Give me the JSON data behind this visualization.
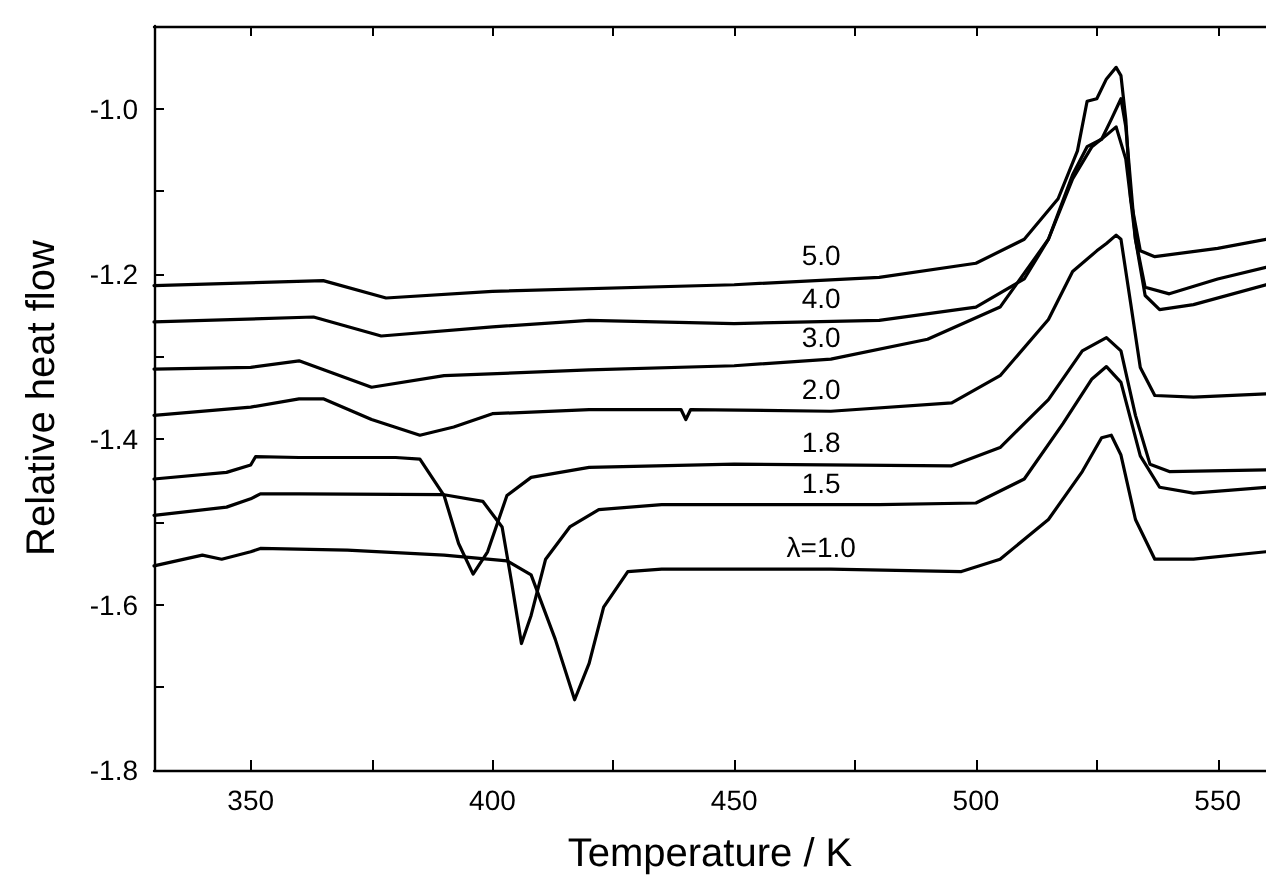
{
  "chart_data": {
    "type": "line",
    "xlabel": "Temperature / K",
    "ylabel": "Relative heat flow",
    "xlim": [
      330,
      560
    ],
    "ylim": [
      -1.8,
      -0.9
    ],
    "xticks": [
      350,
      {
        "value": 375,
        "label": null
      },
      400,
      {
        "value": 425,
        "label": null
      },
      450,
      {
        "value": 475,
        "label": null
      },
      500,
      {
        "value": 525,
        "label": null
      },
      550
    ],
    "yticks": [
      -1.8,
      {
        "value": -1.7,
        "label": null
      },
      -1.6,
      {
        "value": -1.5,
        "label": null
      },
      -1.4,
      {
        "value": -1.3,
        "label": null
      },
      -1.2,
      {
        "value": -1.1,
        "label": null
      },
      {
        "value": -1.0,
        "label": "-1.0"
      }
    ],
    "grid": false,
    "legend": false,
    "line_style": "solid",
    "series": [
      {
        "name": "5.0",
        "color": "#000000",
        "x": [
          330,
          365,
          378,
          400,
          450,
          480,
          500,
          510,
          517,
          521,
          523,
          525,
          527,
          529,
          530,
          531,
          532,
          534,
          537,
          550,
          560
        ],
        "values": [
          -1.214,
          -1.208,
          -1.229,
          -1.221,
          -1.213,
          -1.204,
          -1.187,
          -1.158,
          -1.109,
          -1.051,
          -0.991,
          -0.988,
          -0.964,
          -0.95,
          -0.96,
          -1.013,
          -1.109,
          -1.172,
          -1.179,
          -1.169,
          -1.158
        ]
      },
      {
        "name": "4.0",
        "color": "#000000",
        "x": [
          330,
          363,
          377,
          400,
          420,
          450,
          480,
          500,
          510,
          515,
          520,
          523,
          526,
          528,
          530,
          531,
          533,
          535,
          540,
          550,
          560
        ],
        "values": [
          -1.258,
          -1.252,
          -1.275,
          -1.264,
          -1.256,
          -1.26,
          -1.256,
          -1.24,
          -1.206,
          -1.158,
          -1.08,
          -1.046,
          -1.037,
          -1.013,
          -0.988,
          -1.022,
          -1.158,
          -1.216,
          -1.224,
          -1.206,
          -1.192
        ]
      },
      {
        "name": "3.0",
        "color": "#000000",
        "x": [
          330,
          350,
          360,
          375,
          390,
          420,
          450,
          470,
          490,
          505,
          515,
          520,
          524,
          527,
          529,
          531,
          533,
          535,
          538,
          545,
          560
        ],
        "values": [
          -1.315,
          -1.313,
          -1.305,
          -1.337,
          -1.323,
          -1.316,
          -1.311,
          -1.303,
          -1.279,
          -1.24,
          -1.158,
          -1.085,
          -1.046,
          -1.032,
          -1.022,
          -1.061,
          -1.158,
          -1.226,
          -1.243,
          -1.237,
          -1.213
        ]
      },
      {
        "name": "2.0",
        "color": "#000000",
        "x": [
          330,
          350,
          360,
          365,
          375,
          385,
          392,
          400,
          420,
          439,
          440,
          441,
          470,
          495,
          505,
          515,
          520,
          525,
          527,
          529,
          530,
          532,
          534,
          537,
          545,
          560
        ],
        "values": [
          -1.371,
          -1.361,
          -1.351,
          -1.351,
          -1.376,
          -1.395,
          -1.385,
          -1.369,
          -1.364,
          -1.364,
          -1.376,
          -1.364,
          -1.366,
          -1.356,
          -1.323,
          -1.255,
          -1.197,
          -1.172,
          -1.163,
          -1.153,
          -1.158,
          -1.235,
          -1.313,
          -1.347,
          -1.349,
          -1.345
        ]
      },
      {
        "name": "1.8",
        "color": "#000000",
        "x": [
          330,
          345,
          350,
          351,
          360,
          380,
          385,
          390,
          393,
          396,
          399,
          403,
          408,
          420,
          450,
          495,
          505,
          515,
          522,
          527,
          530,
          533,
          536,
          540,
          560
        ],
        "values": [
          -1.448,
          -1.44,
          -1.431,
          -1.421,
          -1.422,
          -1.422,
          -1.424,
          -1.468,
          -1.526,
          -1.563,
          -1.536,
          -1.468,
          -1.446,
          -1.434,
          -1.43,
          -1.432,
          -1.41,
          -1.352,
          -1.293,
          -1.277,
          -1.293,
          -1.371,
          -1.43,
          -1.439,
          -1.437
        ]
      },
      {
        "name": "1.5",
        "color": "#000000",
        "x": [
          330,
          345,
          350,
          352,
          360,
          390,
          398,
          402,
          404,
          406,
          408,
          411,
          416,
          422,
          435,
          480,
          500,
          510,
          518,
          524,
          527,
          530,
          534,
          538,
          545,
          560
        ],
        "values": [
          -1.492,
          -1.482,
          -1.472,
          -1.466,
          -1.466,
          -1.467,
          -1.475,
          -1.506,
          -1.574,
          -1.647,
          -1.613,
          -1.545,
          -1.506,
          -1.485,
          -1.479,
          -1.479,
          -1.477,
          -1.448,
          -1.381,
          -1.327,
          -1.312,
          -1.331,
          -1.42,
          -1.458,
          -1.465,
          -1.458
        ]
      },
      {
        "name": "λ=1.0",
        "color": "#000000",
        "x": [
          330,
          340,
          344,
          350,
          352,
          370,
          390,
          403,
          408,
          413,
          417,
          420,
          423,
          428,
          435,
          470,
          497,
          505,
          515,
          522,
          526,
          528,
          530,
          533,
          537,
          545,
          560
        ],
        "values": [
          -1.553,
          -1.54,
          -1.545,
          -1.536,
          -1.532,
          -1.534,
          -1.54,
          -1.547,
          -1.564,
          -1.642,
          -1.715,
          -1.671,
          -1.603,
          -1.56,
          -1.557,
          -1.557,
          -1.56,
          -1.545,
          -1.497,
          -1.439,
          -1.398,
          -1.395,
          -1.419,
          -1.497,
          -1.545,
          -1.545,
          -1.536
        ]
      }
    ]
  }
}
